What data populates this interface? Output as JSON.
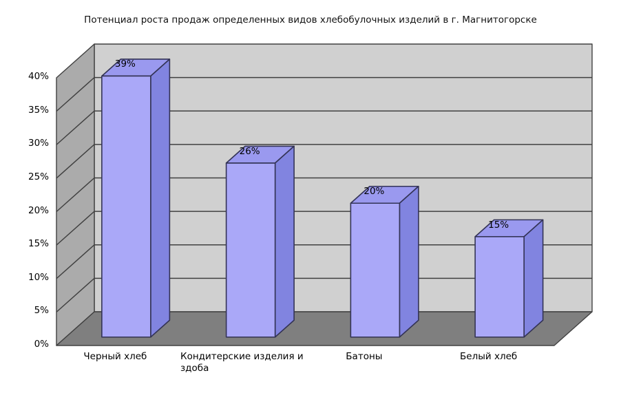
{
  "title": "Потенциал роста продаж определенных видов хлебобулочных изделий в г. Магнитогорске",
  "chart_data": {
    "type": "bar",
    "projection": "3d",
    "title": "Потенциал роста продаж определенных видов хлебобулочных изделий в г. Магнитогорске",
    "categories": [
      "Черный хлеб",
      "Кондитерские изделия и здоба",
      "Батоны",
      "Белый хлеб"
    ],
    "category_label_lines": [
      [
        "Черный хлеб"
      ],
      [
        "Кондитерские изделия и",
        "здоба"
      ],
      [
        "Батоны"
      ],
      [
        "Белый хлеб"
      ]
    ],
    "values": [
      39,
      26,
      20,
      15
    ],
    "bar_labels": [
      "39%",
      "26%",
      "20%",
      "15%"
    ],
    "ytick_labels": [
      "0%",
      "5%",
      "10%",
      "15%",
      "20%",
      "25%",
      "30%",
      "35%",
      "40%"
    ],
    "ytick_values": [
      0,
      5,
      10,
      15,
      20,
      25,
      30,
      35,
      40
    ],
    "ylim": [
      0,
      40
    ],
    "xlabel": "",
    "ylabel": "",
    "legend": "none",
    "grid": "horizontal",
    "colors": {
      "bar_front": "#aaa8f8",
      "bar_top": "#9a99ef",
      "bar_side": "#8184e0",
      "bar_edge": "#333355",
      "back_wall": "#d0d0d0",
      "left_wall": "#ababab",
      "floor": "#7f7f7f",
      "gridline": "#404040",
      "text": "#000000",
      "background": "#ffffff"
    }
  }
}
